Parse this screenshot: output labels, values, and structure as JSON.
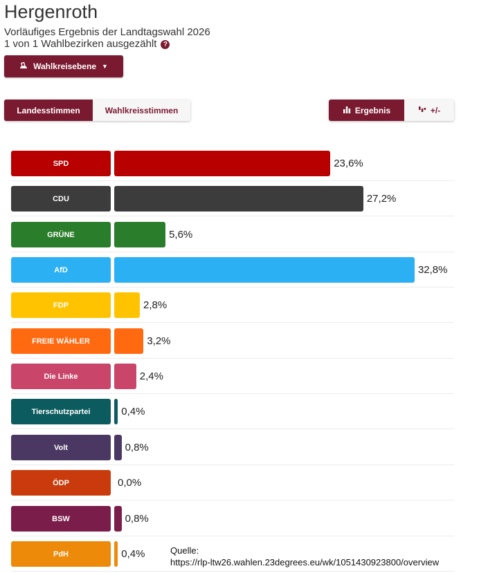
{
  "header": {
    "title": "Hergenroth",
    "subtitle": "Vorläufiges Ergebnis der Landtagswahl 2026",
    "count_text": "1 von 1 Wahlbezirken ausgezählt"
  },
  "controls": {
    "level_button": "Wahlkreisebene",
    "tabs": [
      "Landesstimmen",
      "Wahlkreisstimmen"
    ],
    "active_tab": "Landesstimmen",
    "views": [
      "Ergebnis",
      "+/-"
    ],
    "active_view": "Ergebnis"
  },
  "colors": {
    "brand": "#7a1a30"
  },
  "chart_data": {
    "type": "bar",
    "orientation": "horizontal",
    "categories": [
      "SPD",
      "CDU",
      "GRÜNE",
      "AfD",
      "FDP",
      "FREIE WÄHLER",
      "Die Linke",
      "Tierschutzpartei",
      "Volt",
      "ÖDP",
      "BSW",
      "PdH"
    ],
    "values": [
      23.6,
      27.2,
      5.6,
      32.8,
      2.8,
      3.2,
      2.4,
      0.4,
      0.8,
      0.0,
      0.8,
      0.4
    ],
    "value_labels": [
      "23,6%",
      "27,2%",
      "5,6%",
      "32,8%",
      "2,8%",
      "3,2%",
      "2,4%",
      "0,4%",
      "0,8%",
      "0,0%",
      "0,8%",
      "0,4%"
    ],
    "colors": [
      "#b80000",
      "#3c3c3c",
      "#2a7d2a",
      "#2bb0f4",
      "#ffc300",
      "#ff6a10",
      "#c9456a",
      "#0b5b5f",
      "#4b3862",
      "#c93b0c",
      "#7b1d4a",
      "#ee8a0a"
    ],
    "unit": "%"
  },
  "source": {
    "label": "Quelle:",
    "url": "https://rlp-ltw26.wahlen.23degrees.eu/wk/1051430923800/overview"
  }
}
